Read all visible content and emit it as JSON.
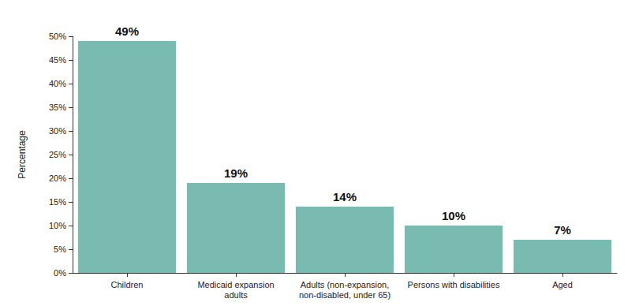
{
  "chart_data": {
    "type": "bar",
    "y_label": "Percentage",
    "categories": [
      "Children",
      "Medicaid expansion\nadults",
      "Adults (non-expansion,\nnon-disabled, under 65)",
      "Persons with disabilities",
      "Aged"
    ],
    "values": [
      49,
      19,
      14,
      10,
      7
    ],
    "value_labels": [
      "49%",
      "19%",
      "14%",
      "10%",
      "7%"
    ],
    "color": "#79bab1",
    "ylim": [
      0,
      50
    ],
    "yticks": [
      {
        "value": 0,
        "label": "0%"
      },
      {
        "value": 5,
        "label": "5%"
      },
      {
        "value": 10,
        "label": "10%"
      },
      {
        "value": 15,
        "label": "15%"
      },
      {
        "value": 20,
        "label": "20%"
      },
      {
        "value": 25,
        "label": "25%"
      },
      {
        "value": 30,
        "label": "30%"
      },
      {
        "value": 35,
        "label": "35%"
      },
      {
        "value": 40,
        "label": "40%"
      },
      {
        "value": 45,
        "label": "45%"
      },
      {
        "value": 50,
        "label": "50%"
      }
    ],
    "grid": false,
    "data_labels": true
  }
}
